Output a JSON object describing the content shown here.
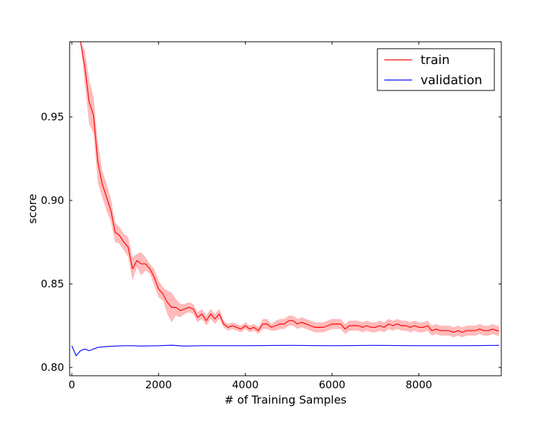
{
  "chart_data": {
    "type": "line",
    "title": "",
    "xlabel": "# of Training Samples",
    "ylabel": "score",
    "xlim": [
      -50,
      9900
    ],
    "ylim": [
      0.795,
      0.995
    ],
    "xticks": [
      {
        "value": 0,
        "label": "0"
      },
      {
        "value": 2000,
        "label": "2000"
      },
      {
        "value": 4000,
        "label": "4000"
      },
      {
        "value": 6000,
        "label": "6000"
      },
      {
        "value": 8000,
        "label": "8000"
      }
    ],
    "yticks": [
      {
        "value": 0.8,
        "label": "0.80"
      },
      {
        "value": 0.85,
        "label": "0.85"
      },
      {
        "value": 0.9,
        "label": "0.90"
      },
      {
        "value": 0.95,
        "label": "0.95"
      }
    ],
    "legend_position": "top-right",
    "grid": false,
    "series": [
      {
        "name": "train",
        "color": "#ff0000",
        "band_color": "#ffbbbb",
        "points": [
          [
            200,
            1.0
          ],
          [
            300,
            0.98
          ],
          [
            400,
            0.959
          ],
          [
            500,
            0.951
          ],
          [
            600,
            0.923
          ],
          [
            700,
            0.91
          ],
          [
            800,
            0.902
          ],
          [
            900,
            0.894
          ],
          [
            1000,
            0.881
          ],
          [
            1100,
            0.879
          ],
          [
            1200,
            0.875
          ],
          [
            1300,
            0.872
          ],
          [
            1400,
            0.859
          ],
          [
            1500,
            0.864
          ],
          [
            1600,
            0.862
          ],
          [
            1700,
            0.862
          ],
          [
            1800,
            0.859
          ],
          [
            1900,
            0.854
          ],
          [
            2000,
            0.847
          ],
          [
            2100,
            0.844
          ],
          [
            2200,
            0.839
          ],
          [
            2300,
            0.836
          ],
          [
            2400,
            0.836
          ],
          [
            2500,
            0.834
          ],
          [
            2600,
            0.835
          ],
          [
            2700,
            0.836
          ],
          [
            2800,
            0.835
          ],
          [
            2900,
            0.83
          ],
          [
            3000,
            0.832
          ],
          [
            3100,
            0.828
          ],
          [
            3200,
            0.832
          ],
          [
            3300,
            0.829
          ],
          [
            3400,
            0.832
          ],
          [
            3500,
            0.826
          ],
          [
            3600,
            0.824
          ],
          [
            3700,
            0.825
          ],
          [
            3800,
            0.824
          ],
          [
            3900,
            0.823
          ],
          [
            4000,
            0.825
          ],
          [
            4100,
            0.823
          ],
          [
            4200,
            0.824
          ],
          [
            4300,
            0.822
          ],
          [
            4400,
            0.826
          ],
          [
            4500,
            0.826
          ],
          [
            4600,
            0.824
          ],
          [
            4700,
            0.825
          ],
          [
            4800,
            0.826
          ],
          [
            4900,
            0.826
          ],
          [
            5000,
            0.828
          ],
          [
            5100,
            0.828
          ],
          [
            5200,
            0.826
          ],
          [
            5300,
            0.827
          ],
          [
            5400,
            0.826
          ],
          [
            5500,
            0.825
          ],
          [
            5600,
            0.824
          ],
          [
            5700,
            0.824
          ],
          [
            5800,
            0.824
          ],
          [
            5900,
            0.825
          ],
          [
            6000,
            0.826
          ],
          [
            6100,
            0.826
          ],
          [
            6200,
            0.826
          ],
          [
            6300,
            0.823
          ],
          [
            6400,
            0.825
          ],
          [
            6500,
            0.825
          ],
          [
            6600,
            0.825
          ],
          [
            6700,
            0.824
          ],
          [
            6800,
            0.825
          ],
          [
            6900,
            0.824
          ],
          [
            7000,
            0.824
          ],
          [
            7100,
            0.825
          ],
          [
            7200,
            0.824
          ],
          [
            7300,
            0.826
          ],
          [
            7400,
            0.825
          ],
          [
            7500,
            0.826
          ],
          [
            7600,
            0.825
          ],
          [
            7700,
            0.825
          ],
          [
            7800,
            0.824
          ],
          [
            7900,
            0.825
          ],
          [
            8000,
            0.824
          ],
          [
            8100,
            0.824
          ],
          [
            8200,
            0.825
          ],
          [
            8300,
            0.822
          ],
          [
            8400,
            0.823
          ],
          [
            8500,
            0.822
          ],
          [
            8600,
            0.822
          ],
          [
            8700,
            0.822
          ],
          [
            8800,
            0.821
          ],
          [
            8900,
            0.822
          ],
          [
            9000,
            0.821
          ],
          [
            9100,
            0.822
          ],
          [
            9200,
            0.822
          ],
          [
            9300,
            0.822
          ],
          [
            9400,
            0.823
          ],
          [
            9500,
            0.822
          ],
          [
            9600,
            0.822
          ],
          [
            9700,
            0.823
          ],
          [
            9800,
            0.822
          ],
          [
            9850,
            0.822
          ]
        ],
        "band": [
          [
            200,
            1.0,
            1.0
          ],
          [
            300,
            0.99,
            0.97
          ],
          [
            400,
            0.972,
            0.946
          ],
          [
            500,
            0.962,
            0.94
          ],
          [
            600,
            0.935,
            0.911
          ],
          [
            700,
            0.918,
            0.902
          ],
          [
            800,
            0.91,
            0.894
          ],
          [
            900,
            0.901,
            0.887
          ],
          [
            1000,
            0.887,
            0.875
          ],
          [
            1100,
            0.884,
            0.874
          ],
          [
            1200,
            0.88,
            0.87
          ],
          [
            1300,
            0.878,
            0.866
          ],
          [
            1400,
            0.866,
            0.852
          ],
          [
            1500,
            0.868,
            0.86
          ],
          [
            1600,
            0.869,
            0.855
          ],
          [
            1700,
            0.866,
            0.858
          ],
          [
            1800,
            0.862,
            0.856
          ],
          [
            1900,
            0.859,
            0.849
          ],
          [
            2000,
            0.852,
            0.842
          ],
          [
            2100,
            0.848,
            0.84
          ],
          [
            2200,
            0.846,
            0.832
          ],
          [
            2300,
            0.845,
            0.827
          ],
          [
            2400,
            0.841,
            0.831
          ],
          [
            2500,
            0.838,
            0.83
          ],
          [
            2600,
            0.838,
            0.832
          ],
          [
            2700,
            0.839,
            0.833
          ],
          [
            2800,
            0.838,
            0.832
          ],
          [
            2900,
            0.833,
            0.827
          ],
          [
            3000,
            0.835,
            0.829
          ],
          [
            3100,
            0.831,
            0.825
          ],
          [
            3200,
            0.835,
            0.829
          ],
          [
            3300,
            0.832,
            0.826
          ],
          [
            3400,
            0.835,
            0.829
          ],
          [
            3500,
            0.828,
            0.824
          ],
          [
            3600,
            0.826,
            0.822
          ],
          [
            3700,
            0.827,
            0.823
          ],
          [
            3800,
            0.826,
            0.822
          ],
          [
            3900,
            0.825,
            0.821
          ],
          [
            4000,
            0.827,
            0.823
          ],
          [
            4100,
            0.825,
            0.821
          ],
          [
            4200,
            0.826,
            0.822
          ],
          [
            4300,
            0.824,
            0.82
          ],
          [
            4400,
            0.829,
            0.823
          ],
          [
            4500,
            0.829,
            0.823
          ],
          [
            4600,
            0.826,
            0.822
          ],
          [
            4700,
            0.828,
            0.822
          ],
          [
            4800,
            0.829,
            0.823
          ],
          [
            4900,
            0.829,
            0.823
          ],
          [
            5000,
            0.831,
            0.825
          ],
          [
            5100,
            0.831,
            0.825
          ],
          [
            5200,
            0.829,
            0.823
          ],
          [
            5300,
            0.83,
            0.824
          ],
          [
            5400,
            0.829,
            0.823
          ],
          [
            5500,
            0.828,
            0.822
          ],
          [
            5600,
            0.827,
            0.821
          ],
          [
            5700,
            0.827,
            0.821
          ],
          [
            5800,
            0.827,
            0.821
          ],
          [
            5900,
            0.828,
            0.822
          ],
          [
            6000,
            0.829,
            0.823
          ],
          [
            6100,
            0.829,
            0.823
          ],
          [
            6200,
            0.829,
            0.823
          ],
          [
            6300,
            0.826,
            0.82
          ],
          [
            6400,
            0.828,
            0.822
          ],
          [
            6500,
            0.828,
            0.822
          ],
          [
            6600,
            0.828,
            0.822
          ],
          [
            6700,
            0.827,
            0.821
          ],
          [
            6800,
            0.828,
            0.822
          ],
          [
            6900,
            0.827,
            0.821
          ],
          [
            7000,
            0.827,
            0.821
          ],
          [
            7100,
            0.828,
            0.822
          ],
          [
            7200,
            0.827,
            0.821
          ],
          [
            7300,
            0.829,
            0.823
          ],
          [
            7400,
            0.828,
            0.822
          ],
          [
            7500,
            0.829,
            0.823
          ],
          [
            7600,
            0.828,
            0.822
          ],
          [
            7700,
            0.828,
            0.822
          ],
          [
            7800,
            0.827,
            0.821
          ],
          [
            7900,
            0.828,
            0.822
          ],
          [
            8000,
            0.827,
            0.821
          ],
          [
            8100,
            0.827,
            0.821
          ],
          [
            8200,
            0.828,
            0.822
          ],
          [
            8300,
            0.825,
            0.819
          ],
          [
            8400,
            0.826,
            0.82
          ],
          [
            8500,
            0.825,
            0.819
          ],
          [
            8600,
            0.825,
            0.819
          ],
          [
            8700,
            0.825,
            0.819
          ],
          [
            8800,
            0.824,
            0.818
          ],
          [
            8900,
            0.825,
            0.819
          ],
          [
            9000,
            0.824,
            0.818
          ],
          [
            9100,
            0.825,
            0.819
          ],
          [
            9200,
            0.825,
            0.819
          ],
          [
            9300,
            0.825,
            0.819
          ],
          [
            9400,
            0.826,
            0.82
          ],
          [
            9500,
            0.825,
            0.819
          ],
          [
            9600,
            0.825,
            0.819
          ],
          [
            9700,
            0.826,
            0.82
          ],
          [
            9800,
            0.825,
            0.819
          ],
          [
            9850,
            0.825,
            0.819
          ]
        ]
      },
      {
        "name": "validation",
        "color": "#0000ff",
        "points": [
          [
            0,
            0.813
          ],
          [
            100,
            0.807
          ],
          [
            200,
            0.81
          ],
          [
            300,
            0.811
          ],
          [
            400,
            0.81
          ],
          [
            500,
            0.811
          ],
          [
            600,
            0.812
          ],
          [
            800,
            0.8125
          ],
          [
            1000,
            0.8128
          ],
          [
            1200,
            0.813
          ],
          [
            1400,
            0.813
          ],
          [
            1600,
            0.8128
          ],
          [
            2000,
            0.813
          ],
          [
            2300,
            0.8133
          ],
          [
            2600,
            0.8128
          ],
          [
            3000,
            0.813
          ],
          [
            4000,
            0.813
          ],
          [
            5000,
            0.8132
          ],
          [
            6000,
            0.813
          ],
          [
            7000,
            0.8132
          ],
          [
            8000,
            0.813
          ],
          [
            9000,
            0.813
          ],
          [
            9850,
            0.8132
          ]
        ]
      }
    ]
  }
}
